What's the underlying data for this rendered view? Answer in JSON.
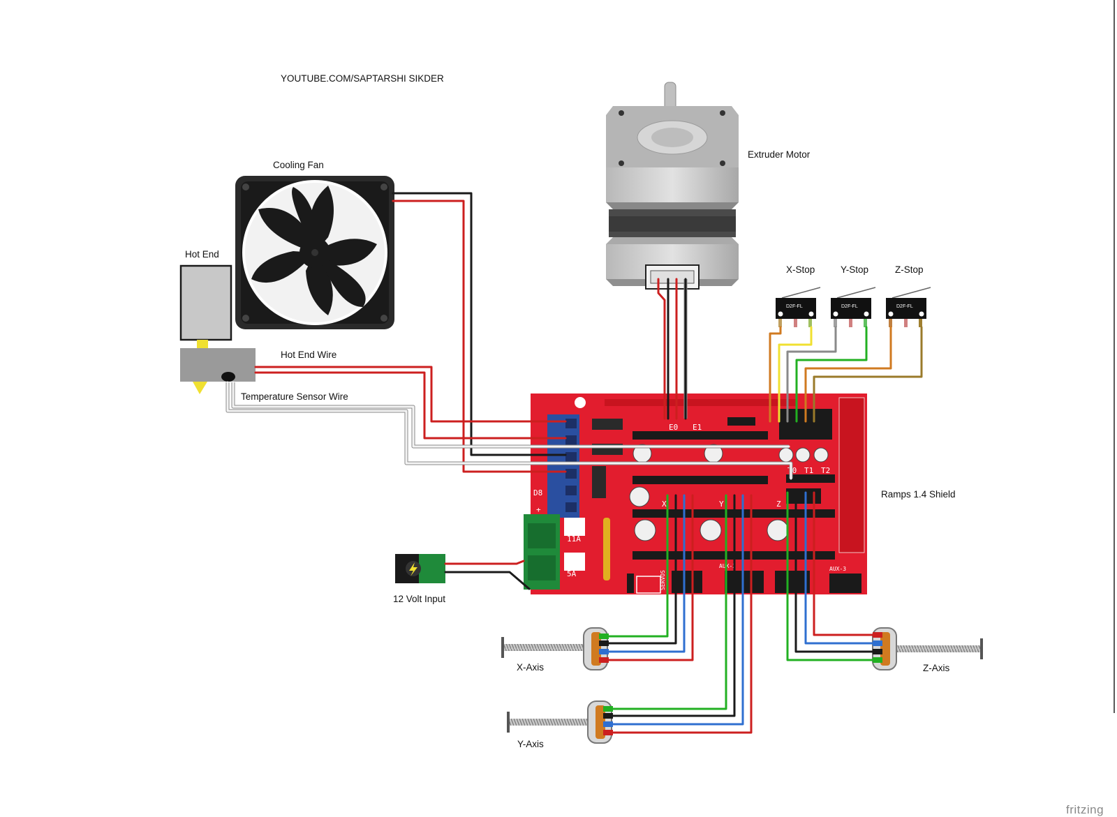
{
  "source_credit": "YOUTUBE.COM/SAPTARSHI SIKDER",
  "watermark": "fritzing",
  "labels": {
    "cooling_fan": "Cooling Fan",
    "hot_end": "Hot End",
    "hot_end_wire": "Hot End Wire",
    "temperature_sensor_wire": "Temperature Sensor Wire",
    "extruder_motor": "Extruder Motor",
    "x_stop": "X-Stop",
    "y_stop": "Y-Stop",
    "z_stop": "Z-Stop",
    "ramps_shield": "Ramps 1.4 Shield",
    "twelve_volt_input": "12 Volt Input",
    "x_axis": "X-Axis",
    "y_axis": "Y-Axis",
    "z_axis": "Z-Axis"
  },
  "endstop_part": "D2F-FL",
  "board_markings": {
    "e0": "E0",
    "e1": "E1",
    "x": "X",
    "y": "Y",
    "z": "Z",
    "t0": "T0",
    "t1": "T1",
    "t2": "T2",
    "d8": "D8",
    "plus": "+",
    "fuse_11a": "11A",
    "fuse_5a": "5A",
    "servos": "SERVOS",
    "aux2": "AUX-2",
    "aux3": "AUX-3"
  },
  "wire_colors": {
    "red": "#cc1f1f",
    "black": "#1a1a1a",
    "green": "#22b022",
    "blue": "#2f6fd0",
    "white": "#f4f4f4",
    "yellow": "#f0e030",
    "orange": "#d07a20",
    "gray": "#8a8a8a",
    "olive": "#9a7a2a",
    "pcb_red": "#e21d2e",
    "terminal_green": "#1f8a3a",
    "terminal_blue": "#2a4fa0"
  }
}
